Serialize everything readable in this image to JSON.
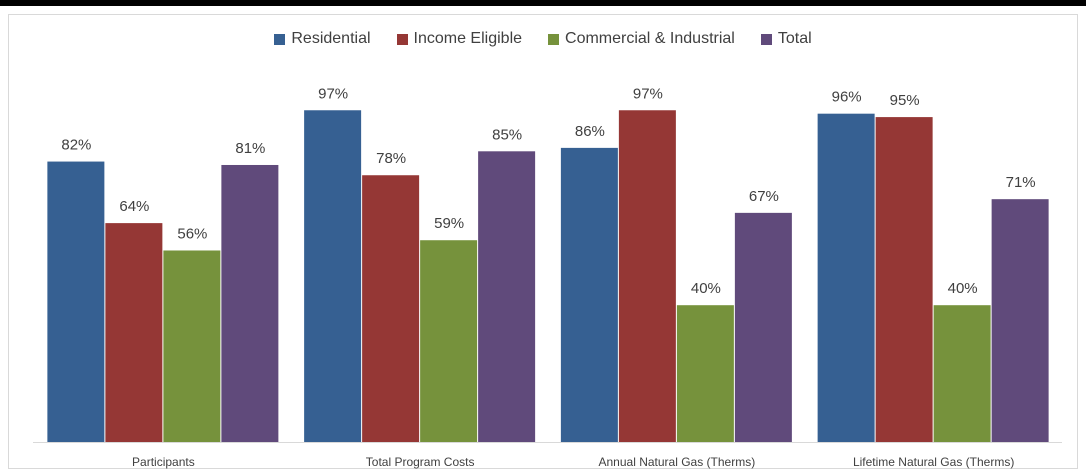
{
  "chart_data": {
    "type": "bar",
    "categories": [
      "Participants",
      "Total Program Costs",
      "Annual Natural Gas (Therms)",
      "Lifetime Natural Gas (Therms)"
    ],
    "series": [
      {
        "name": "Residential",
        "color": "#366092",
        "values": [
          82,
          97,
          86,
          96
        ],
        "labels": [
          "82%",
          "97%",
          "86%",
          "96%"
        ]
      },
      {
        "name": "Income Eligible",
        "color": "#953735",
        "values": [
          64,
          78,
          97,
          95
        ],
        "labels": [
          "64%",
          "78%",
          "97%",
          "95%"
        ]
      },
      {
        "name": "Commercial & Industrial",
        "color": "#76923c",
        "values": [
          56,
          59,
          40,
          40
        ],
        "labels": [
          "56%",
          "59%",
          "40%",
          "40%"
        ]
      },
      {
        "name": "Total",
        "color": "#604a7b",
        "values": [
          81,
          85,
          67,
          71
        ],
        "labels": [
          "81%",
          "85%",
          "67%",
          "71%"
        ]
      }
    ],
    "ylim": [
      0,
      100
    ],
    "grid": false,
    "legend_position": "top"
  }
}
